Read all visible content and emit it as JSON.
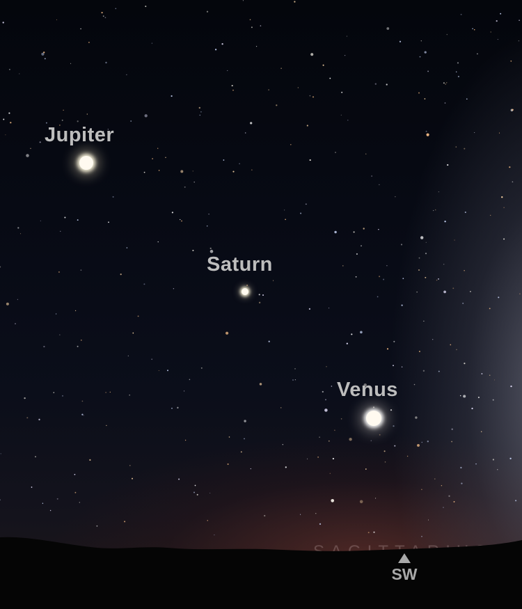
{
  "planets": {
    "jupiter": "Jupiter",
    "saturn": "Saturn",
    "venus": "Venus"
  },
  "constellation": "SAGITTARIUS",
  "compass": {
    "direction": "SW",
    "icon": "triangle-up-icon"
  },
  "colors": {
    "label": "#bdbdbd",
    "compass": "#a9a9a9",
    "ground": "#050505"
  }
}
